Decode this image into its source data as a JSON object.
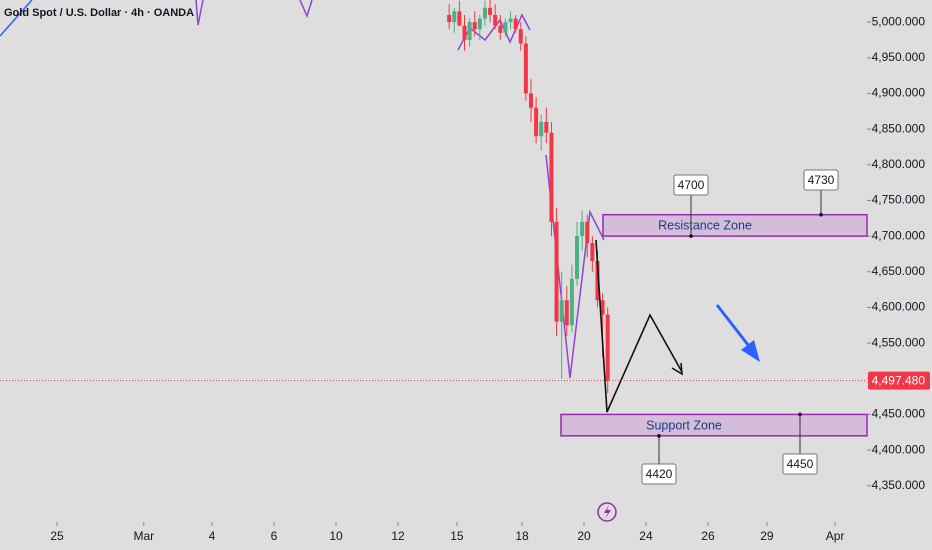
{
  "chart_data": {
    "type": "candlestick",
    "title": "Gold Spot / U.S. Dollar · 4h · OANDA",
    "x": [
      12.65,
      12.815,
      12.98,
      13.145,
      13.31,
      13.475,
      13.64,
      13.805,
      13.97,
      14.135,
      14.3,
      14.465,
      14.63,
      14.795,
      14.96,
      15.125,
      15.29,
      15.455,
      15.62,
      15.785,
      15.95,
      16.115,
      16.28,
      16.445,
      16.61,
      16.775,
      16.94,
      17.105,
      17.27,
      17.435,
      17.6,
      17.765
    ],
    "open": [
      5010,
      5000,
      5015,
      4995,
      4975,
      5000,
      4990,
      5005,
      5020,
      5010,
      4995,
      4985,
      5000,
      5005,
      4990,
      4970,
      4900,
      4880,
      4840,
      4860,
      4845,
      4720,
      4580,
      4610,
      4575,
      4640,
      4700,
      4720,
      4690,
      4665,
      4610,
      4590
    ],
    "high": [
      5025,
      5020,
      5030,
      5010,
      5005,
      5015,
      5010,
      5030,
      5031,
      5025,
      5010,
      5005,
      5015,
      5010,
      5000,
      4980,
      4920,
      4895,
      4870,
      4880,
      4860,
      4740,
      4650,
      4630,
      4660,
      4720,
      4735,
      4730,
      4700,
      4680,
      4620,
      4600
    ],
    "low": [
      4990,
      4985,
      5000,
      4960,
      4965,
      4980,
      4975,
      4995,
      5000,
      4990,
      4975,
      4980,
      4990,
      4985,
      4960,
      4890,
      4860,
      4830,
      4820,
      4830,
      4700,
      4560,
      4500,
      4560,
      4565,
      4630,
      4680,
      4670,
      4650,
      4600,
      4530,
      4480
    ],
    "close": [
      5000,
      5015,
      4995,
      4975,
      5000,
      4990,
      5005,
      5020,
      5010,
      4995,
      4985,
      5000,
      5005,
      4990,
      4970,
      4900,
      4880,
      4840,
      4860,
      4845,
      4720,
      4580,
      4610,
      4575,
      4640,
      4700,
      4720,
      4690,
      4665,
      4610,
      4590,
      4497.48
    ],
    "up_color": "#4caf86",
    "down_color": "#f23645",
    "xlim": [
      -1.84,
      26.13
    ],
    "xticks": [
      {
        "value": 0,
        "label": "25"
      },
      {
        "value": 2.8,
        "label": "Mar"
      },
      {
        "value": 5,
        "label": "4"
      },
      {
        "value": 7,
        "label": "6"
      },
      {
        "value": 9,
        "label": "10"
      },
      {
        "value": 11,
        "label": "12"
      },
      {
        "value": 12.9,
        "label": "15"
      },
      {
        "value": 15,
        "label": "18"
      },
      {
        "value": 17,
        "label": "20"
      },
      {
        "value": 19,
        "label": "24"
      },
      {
        "value": 21,
        "label": "26"
      },
      {
        "value": 22.9,
        "label": "29"
      },
      {
        "value": 25.1,
        "label": "Apr"
      }
    ],
    "ylim": [
      4302,
      5031
    ],
    "yticks": [
      {
        "value": 5000,
        "label": "5,000.000"
      },
      {
        "value": 4950,
        "label": "4,950.000"
      },
      {
        "value": 4900,
        "label": "4,900.000"
      },
      {
        "value": 4850,
        "label": "4,850.000"
      },
      {
        "value": 4800,
        "label": "4,800.000"
      },
      {
        "value": 4750,
        "label": "4,750.000"
      },
      {
        "value": 4700,
        "label": "4,700.000"
      },
      {
        "value": 4650,
        "label": "4,650.000"
      },
      {
        "value": 4600,
        "label": "4,600.000"
      },
      {
        "value": 4550,
        "label": "4,550.000"
      },
      {
        "value": 4500,
        "label": "4,500.000"
      },
      {
        "value": 4450,
        "label": "4,450.000"
      },
      {
        "value": 4400,
        "label": "4,400.000"
      },
      {
        "value": 4350,
        "label": "4,350.000"
      }
    ],
    "current_price": 4497.48,
    "current_price_label": "4,497.480",
    "zones": [
      {
        "name": "Resistance Zone",
        "bottom": 4700,
        "top": 4730
      },
      {
        "name": "Support Zone",
        "bottom": 4420,
        "top": 4450
      }
    ],
    "callouts": [
      4700,
      4730,
      4420,
      4450
    ]
  }
}
